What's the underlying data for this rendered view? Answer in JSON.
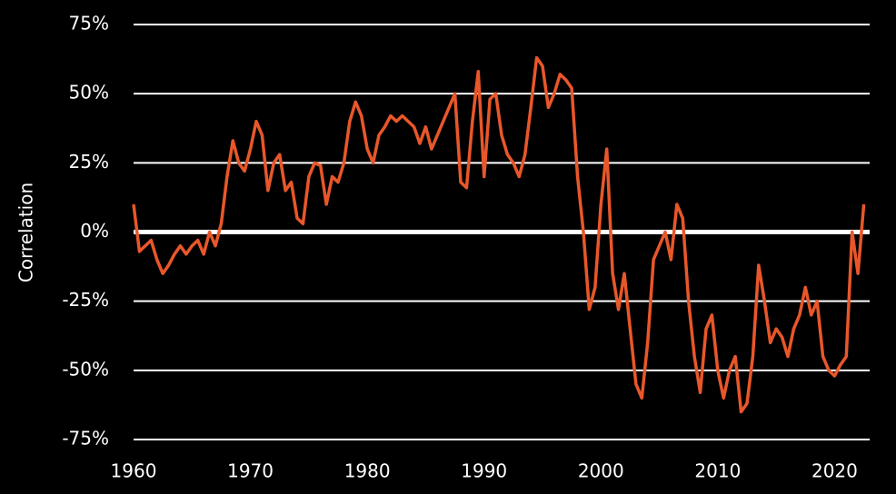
{
  "chart_data": {
    "type": "line",
    "y_label": "Correlation",
    "xlim": [
      1960,
      2023
    ],
    "xticks": [
      1960,
      1970,
      1980,
      1990,
      2000,
      2010,
      2020
    ],
    "ylim": [
      -75,
      75
    ],
    "yticks": [
      {
        "value": -75,
        "label": "-75%"
      },
      {
        "value": -50,
        "label": "-50%"
      },
      {
        "value": -25,
        "label": "-25%"
      },
      {
        "value": 0,
        "label": "0%"
      },
      {
        "value": 25,
        "label": "25%"
      },
      {
        "value": 50,
        "label": "50%"
      },
      {
        "value": 75,
        "label": "75%"
      }
    ],
    "grid": true,
    "x": [
      1960,
      1960.5,
      1961,
      1961.5,
      1962,
      1962.5,
      1963,
      1963.5,
      1964,
      1964.5,
      1965,
      1965.5,
      1966,
      1966.5,
      1967,
      1967.5,
      1968,
      1968.5,
      1969,
      1969.5,
      1970,
      1970.5,
      1971,
      1971.5,
      1972,
      1972.5,
      1973,
      1973.5,
      1974,
      1974.5,
      1975,
      1975.5,
      1976,
      1976.5,
      1977,
      1977.5,
      1978,
      1978.5,
      1979,
      1979.5,
      1980,
      1980.5,
      1981,
      1981.5,
      1982,
      1982.5,
      1983,
      1983.5,
      1984,
      1984.5,
      1985,
      1985.5,
      1986,
      1986.5,
      1987,
      1987.5,
      1988,
      1988.5,
      1989,
      1989.5,
      1990,
      1990.5,
      1991,
      1991.5,
      1992,
      1992.5,
      1993,
      1993.5,
      1994,
      1994.5,
      1995,
      1995.5,
      1996,
      1996.5,
      1997,
      1997.5,
      1998,
      1998.5,
      1999,
      1999.5,
      2000,
      2000.5,
      2001,
      2001.5,
      2002,
      2002.5,
      2003,
      2003.5,
      2004,
      2004.5,
      2005,
      2005.5,
      2006,
      2006.5,
      2007,
      2007.5,
      2008,
      2008.5,
      2009,
      2009.5,
      2010,
      2010.5,
      2011,
      2011.5,
      2012,
      2012.5,
      2013,
      2013.5,
      2014,
      2014.5,
      2015,
      2015.5,
      2016,
      2016.5,
      2017,
      2017.5,
      2018,
      2018.5,
      2019,
      2019.5,
      2020,
      2020.5,
      2021,
      2021.5,
      2022,
      2022.5
    ],
    "series": [
      {
        "color": "#e8572a",
        "values": [
          10,
          -7,
          -5,
          -3,
          -10,
          -15,
          -12,
          -8,
          -5,
          -8,
          -5,
          -3,
          -8,
          0,
          -5,
          3,
          20,
          33,
          25,
          22,
          30,
          40,
          35,
          15,
          25,
          28,
          15,
          18,
          5,
          3,
          20,
          25,
          24,
          10,
          20,
          18,
          25,
          40,
          47,
          42,
          30,
          25,
          35,
          38,
          42,
          40,
          42,
          40,
          38,
          32,
          38,
          30,
          35,
          40,
          45,
          50,
          18,
          16,
          40,
          58,
          20,
          48,
          50,
          35,
          28,
          25,
          20,
          28,
          45,
          63,
          60,
          45,
          50,
          57,
          55,
          52,
          20,
          0,
          -28,
          -20,
          10,
          30,
          -15,
          -28,
          -15,
          -35,
          -55,
          -60,
          -40,
          -10,
          -5,
          0,
          -10,
          10,
          5,
          -25,
          -45,
          -58,
          -35,
          -30,
          -50,
          -60,
          -50,
          -45,
          -65,
          -62,
          -45,
          -12,
          -25,
          -40,
          -35,
          -38,
          -45,
          -35,
          -30,
          -20,
          -30,
          -25,
          -45,
          -50,
          -52,
          -48,
          -45,
          0,
          -15,
          10
        ]
      }
    ]
  }
}
